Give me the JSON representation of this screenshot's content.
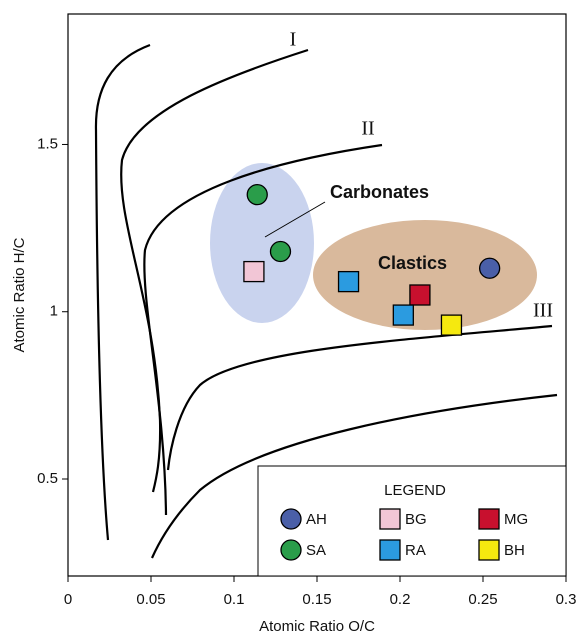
{
  "chart_data": {
    "type": "scatter",
    "xlabel": "Atomic Ratio O/C",
    "ylabel": "Atomic Ratio H/C",
    "xlim": [
      0,
      0.3
    ],
    "ylim": [
      0.21,
      1.89
    ],
    "xticks": [
      0,
      0.05,
      0.1,
      0.15,
      0.2,
      0.25,
      0.3
    ],
    "yticks": [
      0.5,
      1,
      1.5
    ],
    "curve_labels": [
      "I",
      "II",
      "III"
    ],
    "annotations": [
      "Carbonates",
      "Clastics"
    ],
    "legend_title": "LEGEND",
    "series": [
      {
        "name": "AH",
        "color": "#4a5fa8",
        "marker": "circle",
        "x": [
          0.254
        ],
        "values": [
          1.13
        ]
      },
      {
        "name": "BG",
        "color": "#f2c6d6",
        "marker": "square",
        "x": [
          0.112
        ],
        "values": [
          1.12
        ]
      },
      {
        "name": "MG",
        "color": "#c8102e",
        "marker": "square",
        "x": [
          0.212
        ],
        "values": [
          1.05
        ]
      },
      {
        "name": "SA",
        "color": "#2a9d4a",
        "marker": "circle",
        "x": [
          0.114,
          0.128
        ],
        "values": [
          1.35,
          1.18
        ]
      },
      {
        "name": "RA",
        "color": "#2b9be0",
        "marker": "square",
        "x": [
          0.169,
          0.202
        ],
        "values": [
          1.09,
          0.99
        ]
      },
      {
        "name": "BH",
        "color": "#f5e90f",
        "marker": "square",
        "x": [
          0.231
        ],
        "values": [
          0.96
        ]
      }
    ]
  }
}
